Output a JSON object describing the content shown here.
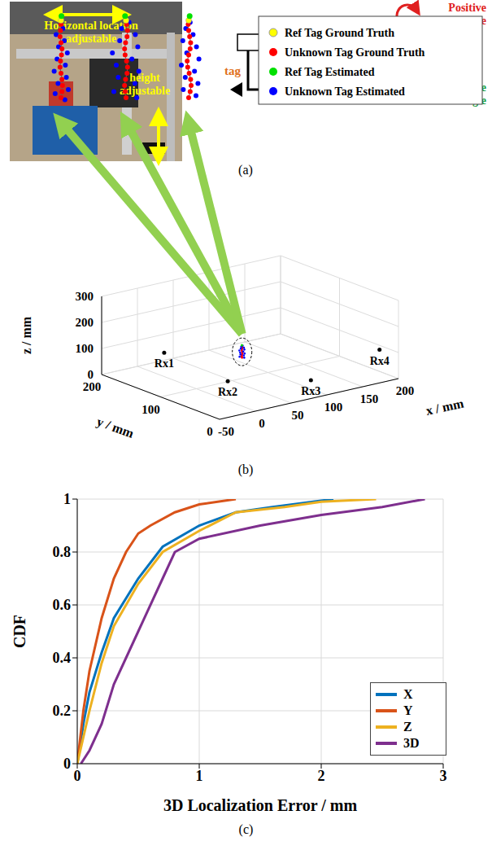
{
  "panel_a": {
    "panel_label": "(a)",
    "photo_labels": {
      "horizontal": "Horizontal location adjustable",
      "height": "height adjustable"
    },
    "diagram_labels": {
      "tag": "tag",
      "positive": "Positive Tilt Angle",
      "negative": "Negative Tilt Angle"
    }
  },
  "panel_b": {
    "panel_label": "(b)",
    "type": "scatter3d",
    "xlabel": "x / mm",
    "ylabel": "y / mm",
    "zlabel": "z / mm",
    "xlim": [
      -50,
      200
    ],
    "xticks": [
      -50,
      0,
      50,
      100,
      150,
      200
    ],
    "ylim": [
      0,
      200
    ],
    "yticks": [
      0,
      100,
      200
    ],
    "zlim": [
      0,
      300
    ],
    "zticks": [
      0,
      100,
      200,
      300
    ],
    "receivers": [
      {
        "name": "Rx1",
        "x": 25,
        "y": 185,
        "z": 50
      },
      {
        "name": "Rx2",
        "x": 15,
        "y": 65,
        "z": 50
      },
      {
        "name": "Rx3",
        "x": 90,
        "y": 15,
        "z": 50
      },
      {
        "name": "Rx4",
        "x": 190,
        "y": 20,
        "z": 100
      }
    ],
    "tag_cluster": {
      "x": 35,
      "y": 65,
      "z": 150
    },
    "legend": [
      {
        "name": "Ref Tag Ground Truth",
        "color": "#ffff00"
      },
      {
        "name": "Unknown Tag Ground Truth",
        "color": "#ff0000"
      },
      {
        "name": "Ref Tag Estimated",
        "color": "#00e000"
      },
      {
        "name": "Unknown Tag Estimated",
        "color": "#0000ff"
      }
    ],
    "insets": [
      {
        "ref_truth": [
          0,
          40
        ],
        "ref_estimated": [
          0.1,
          40.5
        ],
        "unknown_truth": [
          [
            0,
            2
          ],
          [
            0.2,
            5
          ],
          [
            0.3,
            8
          ],
          [
            0.2,
            11
          ],
          [
            0,
            14
          ],
          [
            -0.2,
            17
          ],
          [
            -0.1,
            20
          ],
          [
            0.1,
            23
          ],
          [
            0.2,
            26
          ],
          [
            0,
            29
          ],
          [
            -0.2,
            32
          ],
          [
            -0.1,
            35
          ],
          [
            0,
            38
          ]
        ],
        "unknown_estimated": [
          [
            0.8,
            1
          ],
          [
            -1.2,
            4
          ],
          [
            1.5,
            6
          ],
          [
            -0.6,
            9
          ],
          [
            1.1,
            12
          ],
          [
            -1.4,
            15
          ],
          [
            0.9,
            18
          ],
          [
            -0.8,
            21
          ],
          [
            1.3,
            24
          ],
          [
            -0.5,
            27
          ],
          [
            0.7,
            30
          ],
          [
            -1,
            33
          ],
          [
            0.4,
            36
          ]
        ]
      },
      {
        "ref_truth": [
          0,
          40
        ],
        "ref_estimated": [
          -0.2,
          40.5
        ],
        "unknown_truth": [
          [
            0,
            2
          ],
          [
            -0.2,
            5
          ],
          [
            -0.3,
            8
          ],
          [
            -0.1,
            11
          ],
          [
            0.2,
            14
          ],
          [
            0.3,
            17
          ],
          [
            0.1,
            20
          ],
          [
            -0.2,
            23
          ],
          [
            -0.3,
            26
          ],
          [
            -0.1,
            29
          ],
          [
            0.2,
            32
          ],
          [
            0.3,
            35
          ],
          [
            0.1,
            38
          ]
        ],
        "unknown_estimated": [
          [
            2.2,
            2
          ],
          [
            -2.5,
            5
          ],
          [
            1.8,
            9
          ],
          [
            -1.6,
            12
          ],
          [
            2.6,
            15
          ],
          [
            -2,
            18
          ],
          [
            1.2,
            21
          ],
          [
            -2.8,
            24
          ],
          [
            2.4,
            27
          ],
          [
            -1.3,
            30
          ],
          [
            1.9,
            33
          ],
          [
            -0.9,
            36
          ],
          [
            0.6,
            39
          ]
        ]
      },
      {
        "ref_truth": [
          0,
          40
        ],
        "ref_estimated": [
          0.2,
          40.5
        ],
        "unknown_truth": [
          [
            0,
            2
          ],
          [
            0.3,
            5
          ],
          [
            0.5,
            8
          ],
          [
            0.4,
            11
          ],
          [
            0.1,
            14
          ],
          [
            -0.2,
            17
          ],
          [
            -0.3,
            20
          ],
          [
            0,
            23
          ],
          [
            0.3,
            26
          ],
          [
            0.4,
            29
          ],
          [
            0.2,
            32
          ],
          [
            0,
            35
          ],
          [
            -0.1,
            38
          ]
        ],
        "unknown_estimated": [
          [
            1.5,
            3
          ],
          [
            -1.1,
            6
          ],
          [
            1.9,
            9
          ],
          [
            -0.7,
            12
          ],
          [
            1.2,
            15
          ],
          [
            -1.5,
            18
          ],
          [
            2.1,
            21
          ],
          [
            -0.4,
            24
          ],
          [
            1.6,
            27
          ],
          [
            -1.2,
            30
          ],
          [
            0.9,
            33
          ],
          [
            -0.6,
            36
          ],
          [
            0.3,
            39
          ]
        ]
      }
    ]
  },
  "chart_data": {
    "type": "line",
    "panel_label": "(c)",
    "xlabel": "3D Localization Error / mm",
    "ylabel": "CDF",
    "xlim": [
      0,
      3
    ],
    "xticks": [
      0,
      1,
      2,
      3
    ],
    "ylim": [
      0,
      1
    ],
    "yticks": [
      0,
      0.2,
      0.4,
      0.6,
      0.8,
      1
    ],
    "grid": true,
    "legend": "lower right",
    "series": [
      {
        "name": "X",
        "color": "#0072bd",
        "x": [
          0,
          0.05,
          0.1,
          0.2,
          0.3,
          0.5,
          0.7,
          1.0,
          1.3,
          1.6,
          2.1
        ],
        "values": [
          0,
          0.15,
          0.27,
          0.42,
          0.55,
          0.7,
          0.82,
          0.9,
          0.95,
          0.97,
          1.0
        ]
      },
      {
        "name": "Y",
        "color": "#d95319",
        "x": [
          0,
          0.05,
          0.1,
          0.2,
          0.3,
          0.4,
          0.5,
          0.6,
          0.8,
          1.0,
          1.3
        ],
        "values": [
          0,
          0.2,
          0.35,
          0.55,
          0.7,
          0.8,
          0.87,
          0.9,
          0.95,
          0.98,
          1.0
        ]
      },
      {
        "name": "Z",
        "color": "#edb120",
        "x": [
          0,
          0.1,
          0.2,
          0.3,
          0.5,
          0.7,
          1.0,
          1.3,
          1.7,
          2.0,
          2.45
        ],
        "values": [
          0,
          0.2,
          0.38,
          0.52,
          0.68,
          0.8,
          0.88,
          0.95,
          0.97,
          0.99,
          1.0
        ]
      },
      {
        "name": "3D",
        "color": "#7e2f8e",
        "x": [
          0.03,
          0.1,
          0.2,
          0.3,
          0.5,
          0.7,
          0.8,
          1.0,
          1.5,
          2.0,
          2.5,
          2.85
        ],
        "values": [
          0,
          0.05,
          0.15,
          0.3,
          0.5,
          0.7,
          0.8,
          0.85,
          0.9,
          0.94,
          0.97,
          1.0
        ]
      }
    ]
  }
}
